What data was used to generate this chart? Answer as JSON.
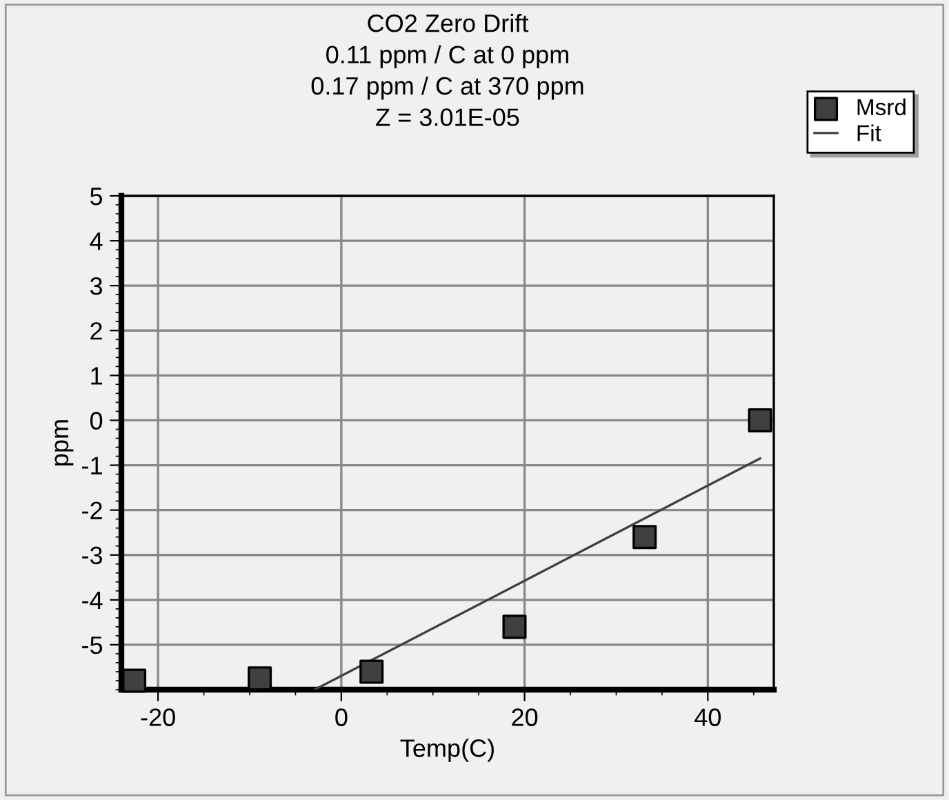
{
  "chart_data": {
    "type": "scatter",
    "title": "CO2 Zero Drift\n0.11 ppm / C at 0 ppm\n0.17 ppm / C at 370 ppm\nZ = 3.01E-05",
    "xlabel": "Temp(C)",
    "ylabel": "ppm",
    "series": [
      {
        "name": "Msrd",
        "color": "#404040",
        "marker": "square",
        "x": [
          -22.6,
          -8.9,
          3.3,
          18.9,
          33.1,
          45.7
        ],
        "values": [
          -5.8,
          -5.75,
          -5.6,
          -4.6,
          -2.6,
          0
        ]
      },
      {
        "name": "Fit",
        "type": "line",
        "color": "#404040",
        "marker": "none",
        "line_style": "solid",
        "x": [
          -2.9,
          45.7
        ],
        "values": [
          -6,
          -0.85
        ]
      }
    ],
    "xlim": [
      -24,
      47.2
    ],
    "ylim": [
      -6,
      5
    ],
    "xticks": [
      -20,
      0,
      20,
      40
    ],
    "yticks": [
      -5,
      -4,
      -3,
      -2,
      -1,
      0,
      1,
      2,
      3,
      4,
      5
    ],
    "grid": true,
    "legend": "top right"
  }
}
